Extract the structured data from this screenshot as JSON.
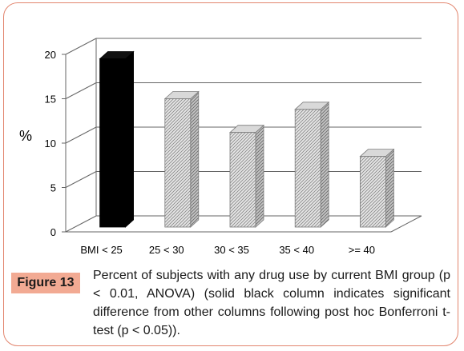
{
  "figure": {
    "label": "Figure 13",
    "caption": "Percent of subjects with any drug use by current BMI group (p < 0.01, ANOVA) (solid black column indicates significant difference from other columns following post hoc Bonferroni t-test (p < 0.05))."
  },
  "colors": {
    "frame": "#e2856e",
    "label_bg": "#f2aa93",
    "highlight_bar": "#000000",
    "hatched_bar": "#bdbdbd"
  },
  "chart_data": {
    "type": "bar",
    "style": "3d-columns",
    "title": "",
    "xlabel": "",
    "ylabel": "%",
    "categories": [
      "BMI < 25",
      "25 < 30",
      "30 < 35",
      "35 < 40",
      ">= 40"
    ],
    "values": [
      19.5,
      15,
      11.2,
      13.8,
      8.5
    ],
    "highlighted": [
      true,
      false,
      false,
      false,
      false
    ],
    "ylim": [
      0,
      20
    ],
    "yticks": [
      0,
      5,
      10,
      15,
      20
    ],
    "grid": true,
    "legend": "none"
  }
}
